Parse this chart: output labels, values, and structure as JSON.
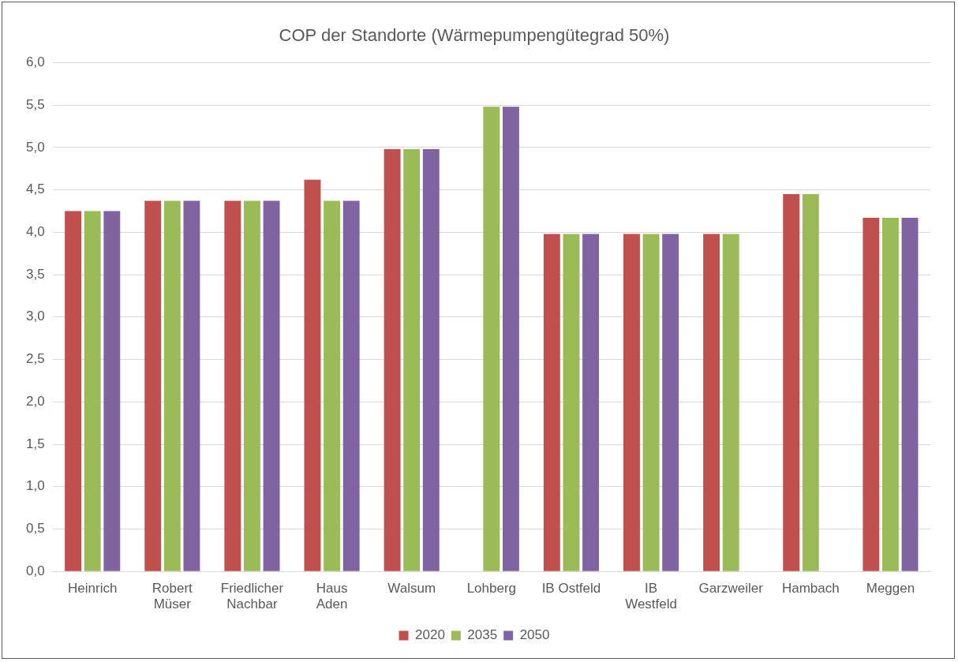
{
  "chart_data": {
    "type": "bar",
    "title": "COP der Standorte (Wärmepumpengütegrad 50%)",
    "categories": [
      "Heinrich",
      "Robert Müser",
      "Friedlicher Nachbar",
      "Haus Aden",
      "Walsum",
      "Lohberg",
      "IB Ostfeld",
      "IB Westfeld",
      "Garzweiler",
      "Hambach",
      "Meggen"
    ],
    "series": [
      {
        "name": "2020",
        "color": "#c0504d",
        "values": [
          4.25,
          4.37,
          4.37,
          4.62,
          4.98,
          null,
          3.98,
          3.98,
          3.98,
          4.45,
          4.17
        ]
      },
      {
        "name": "2035",
        "color": "#9bbb59",
        "values": [
          4.25,
          4.37,
          4.37,
          4.37,
          4.98,
          5.48,
          3.98,
          3.98,
          3.98,
          4.45,
          4.17
        ]
      },
      {
        "name": "2050",
        "color": "#8064a2",
        "values": [
          4.25,
          4.37,
          4.37,
          4.37,
          4.98,
          5.48,
          3.98,
          3.98,
          null,
          null,
          4.17
        ]
      }
    ],
    "ylim": [
      0,
      6
    ],
    "yticks": [
      {
        "value": 0,
        "label": "0,0"
      },
      {
        "value": 0.5,
        "label": "0,5"
      },
      {
        "value": 1,
        "label": "1,0"
      },
      {
        "value": 1.5,
        "label": "1,5"
      },
      {
        "value": 2,
        "label": "2,0"
      },
      {
        "value": 2.5,
        "label": "2,5"
      },
      {
        "value": 3,
        "label": "3,0"
      },
      {
        "value": 3.5,
        "label": "3,5"
      },
      {
        "value": 4,
        "label": "4,0"
      },
      {
        "value": 4.5,
        "label": "4,5"
      },
      {
        "value": 5,
        "label": "5,0"
      },
      {
        "value": 5.5,
        "label": "5,5"
      },
      {
        "value": 6,
        "label": "6,0"
      }
    ],
    "grid": "y",
    "legend": "bottom"
  }
}
